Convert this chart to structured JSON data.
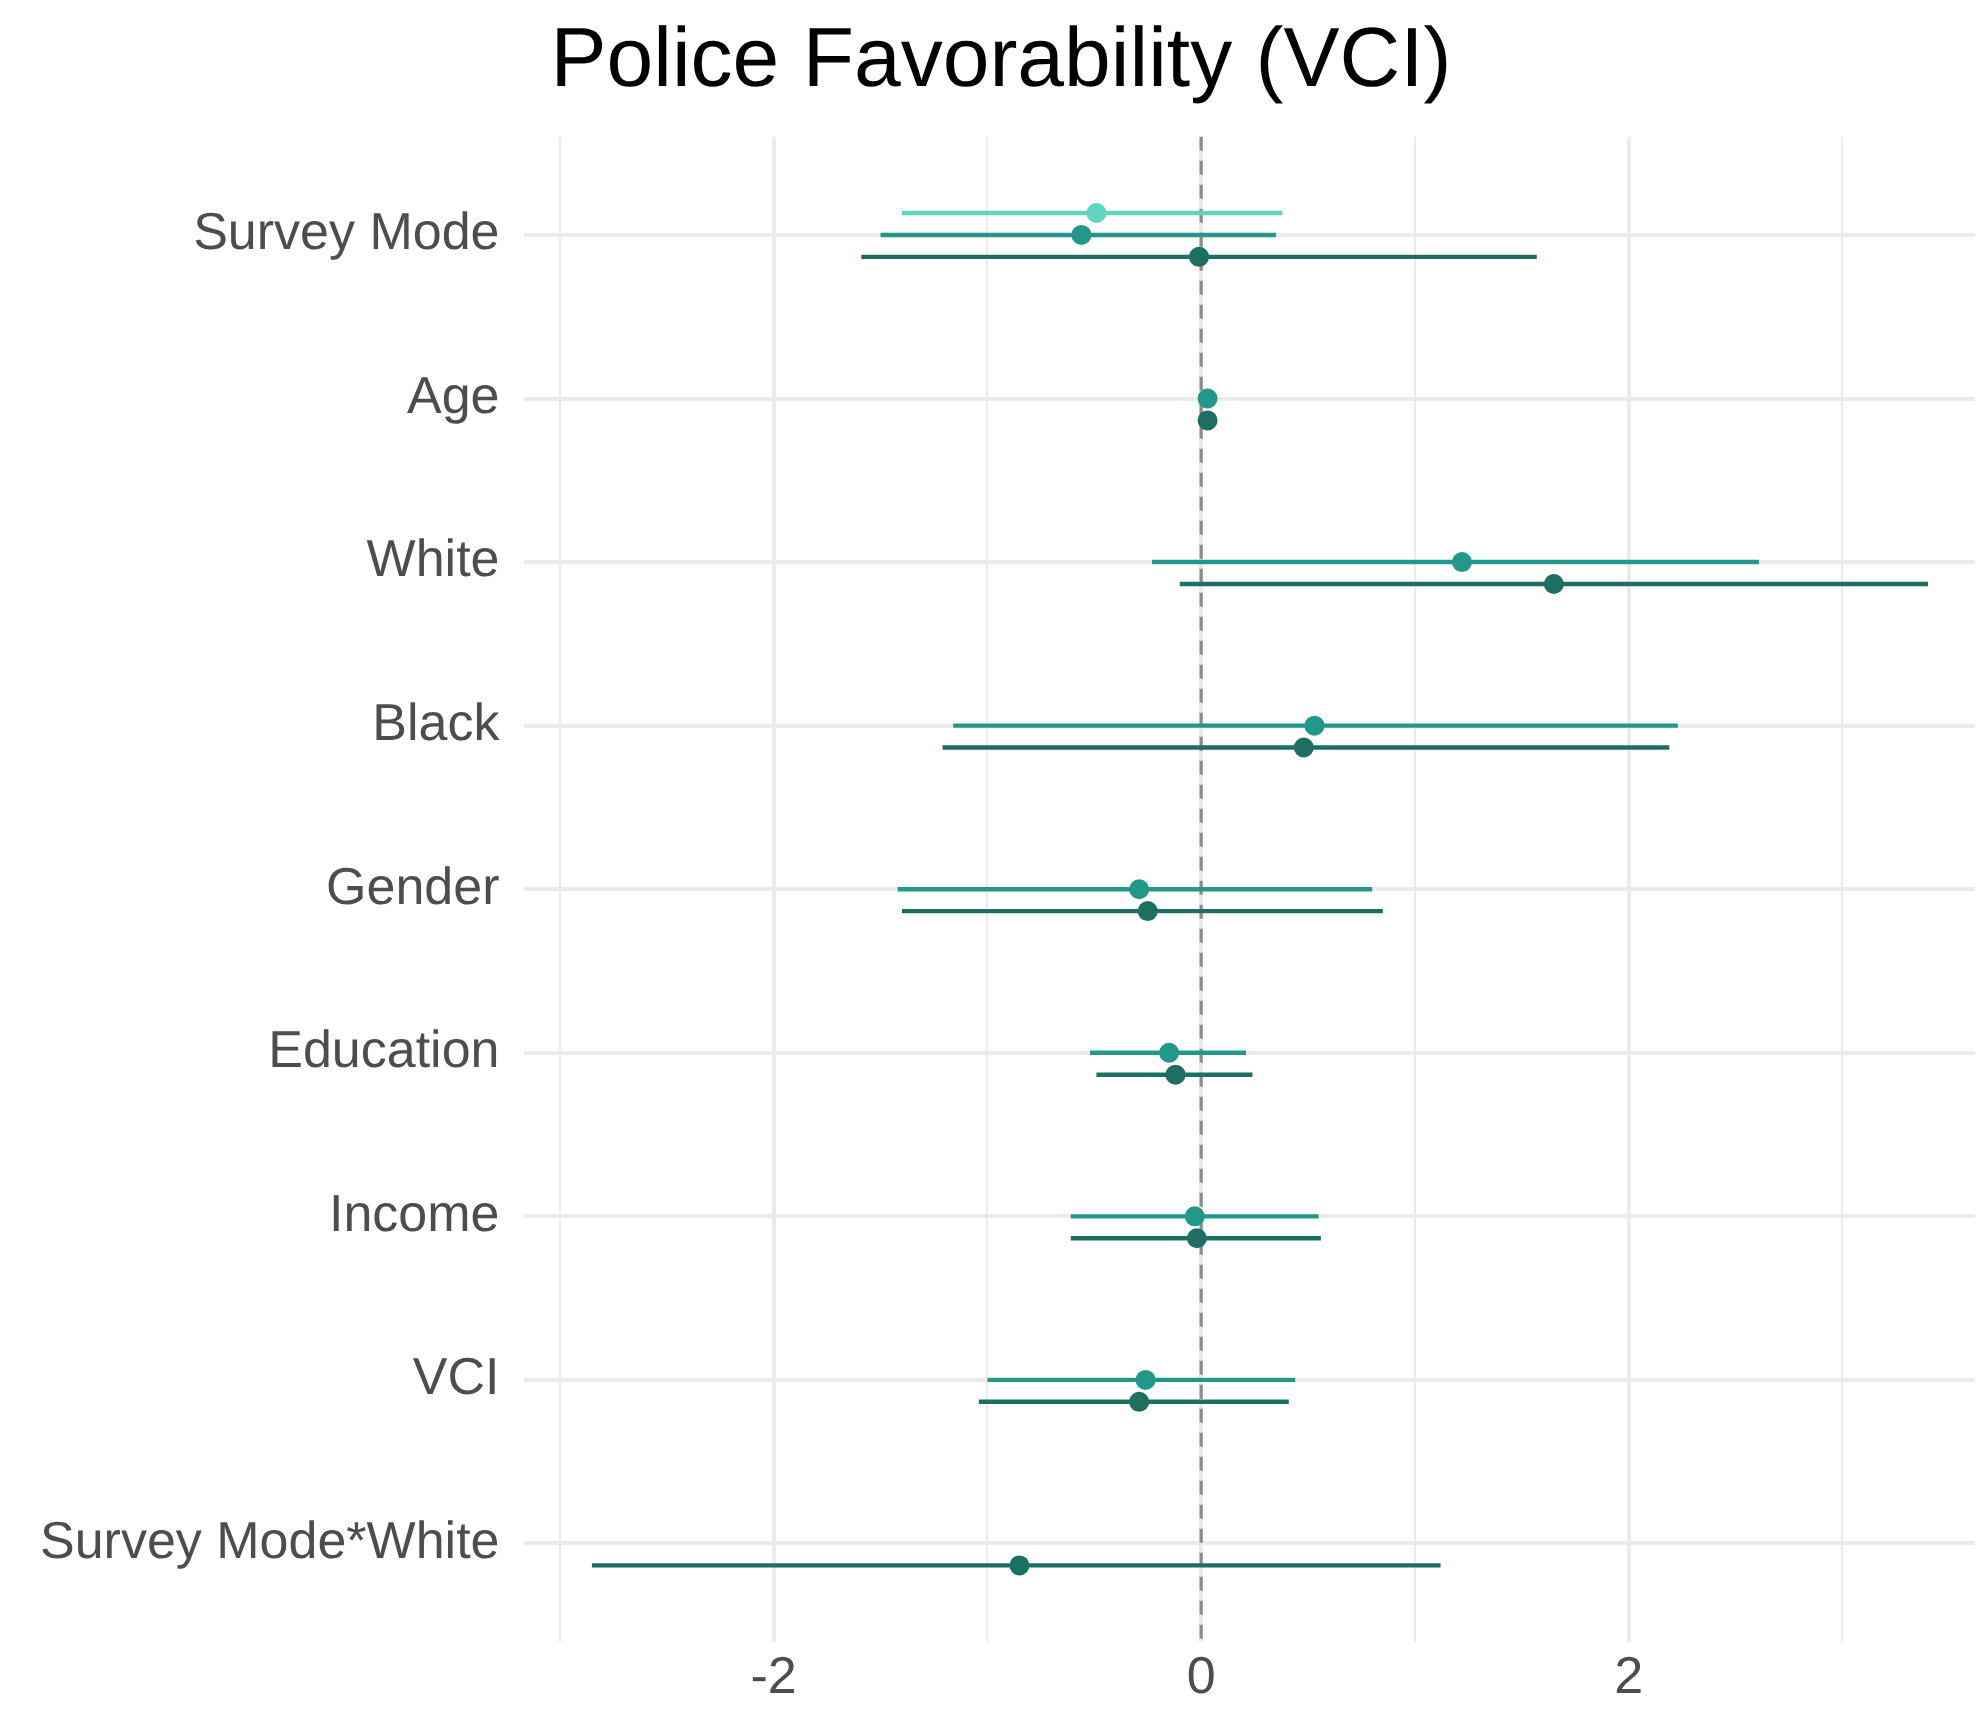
{
  "chart_data": {
    "type": "scatter",
    "orientation": "horizontal",
    "title": "Police Favorability (VCI)",
    "categories": [
      "Survey Mode",
      "Age",
      "White",
      "Black",
      "Gender",
      "Education",
      "Income",
      "VCI",
      "Survey Mode*White"
    ],
    "series": [
      {
        "color": "#5fd6c2",
        "values": [
          -0.49,
          null,
          null,
          null,
          null,
          null,
          null,
          null,
          null
        ],
        "errors": [
          [
            -1.4,
            0.38
          ],
          null,
          null,
          null,
          null,
          null,
          null,
          null,
          null
        ]
      },
      {
        "color": "#22988a",
        "values": [
          -0.56,
          0.03,
          1.22,
          0.53,
          -0.29,
          -0.15,
          -0.03,
          -0.26,
          null
        ],
        "errors": [
          [
            -1.5,
            0.35
          ],
          null,
          [
            -0.23,
            2.61
          ],
          [
            -1.16,
            2.23
          ],
          [
            -1.42,
            0.8
          ],
          [
            -0.52,
            0.21
          ],
          [
            -0.61,
            0.55
          ],
          [
            -1.0,
            0.44
          ],
          null
        ]
      },
      {
        "color": "#1d6f62",
        "values": [
          -0.01,
          0.03,
          1.65,
          0.48,
          -0.25,
          -0.12,
          -0.02,
          -0.29,
          -0.85
        ],
        "errors": [
          [
            -1.59,
            1.57
          ],
          null,
          [
            -0.1,
            3.4
          ],
          [
            -1.21,
            2.19
          ],
          [
            -1.4,
            0.85
          ],
          [
            -0.49,
            0.24
          ],
          [
            -0.61,
            0.56
          ],
          [
            -1.04,
            0.41
          ],
          [
            -2.85,
            1.12
          ]
        ]
      }
    ],
    "xlim": [
      -3.17,
      3.62
    ],
    "xticks": [
      {
        "value": -3,
        "label": null
      },
      -2,
      {
        "value": -1,
        "label": null
      },
      0,
      {
        "value": 1,
        "label": null
      },
      2,
      {
        "value": 3,
        "label": null
      }
    ],
    "ref_lines": [
      {
        "axis": "x",
        "value": 0,
        "color": "#8c8c8c",
        "line_style": "dashed"
      }
    ],
    "grid": true,
    "legend": false,
    "marker": "circle"
  }
}
